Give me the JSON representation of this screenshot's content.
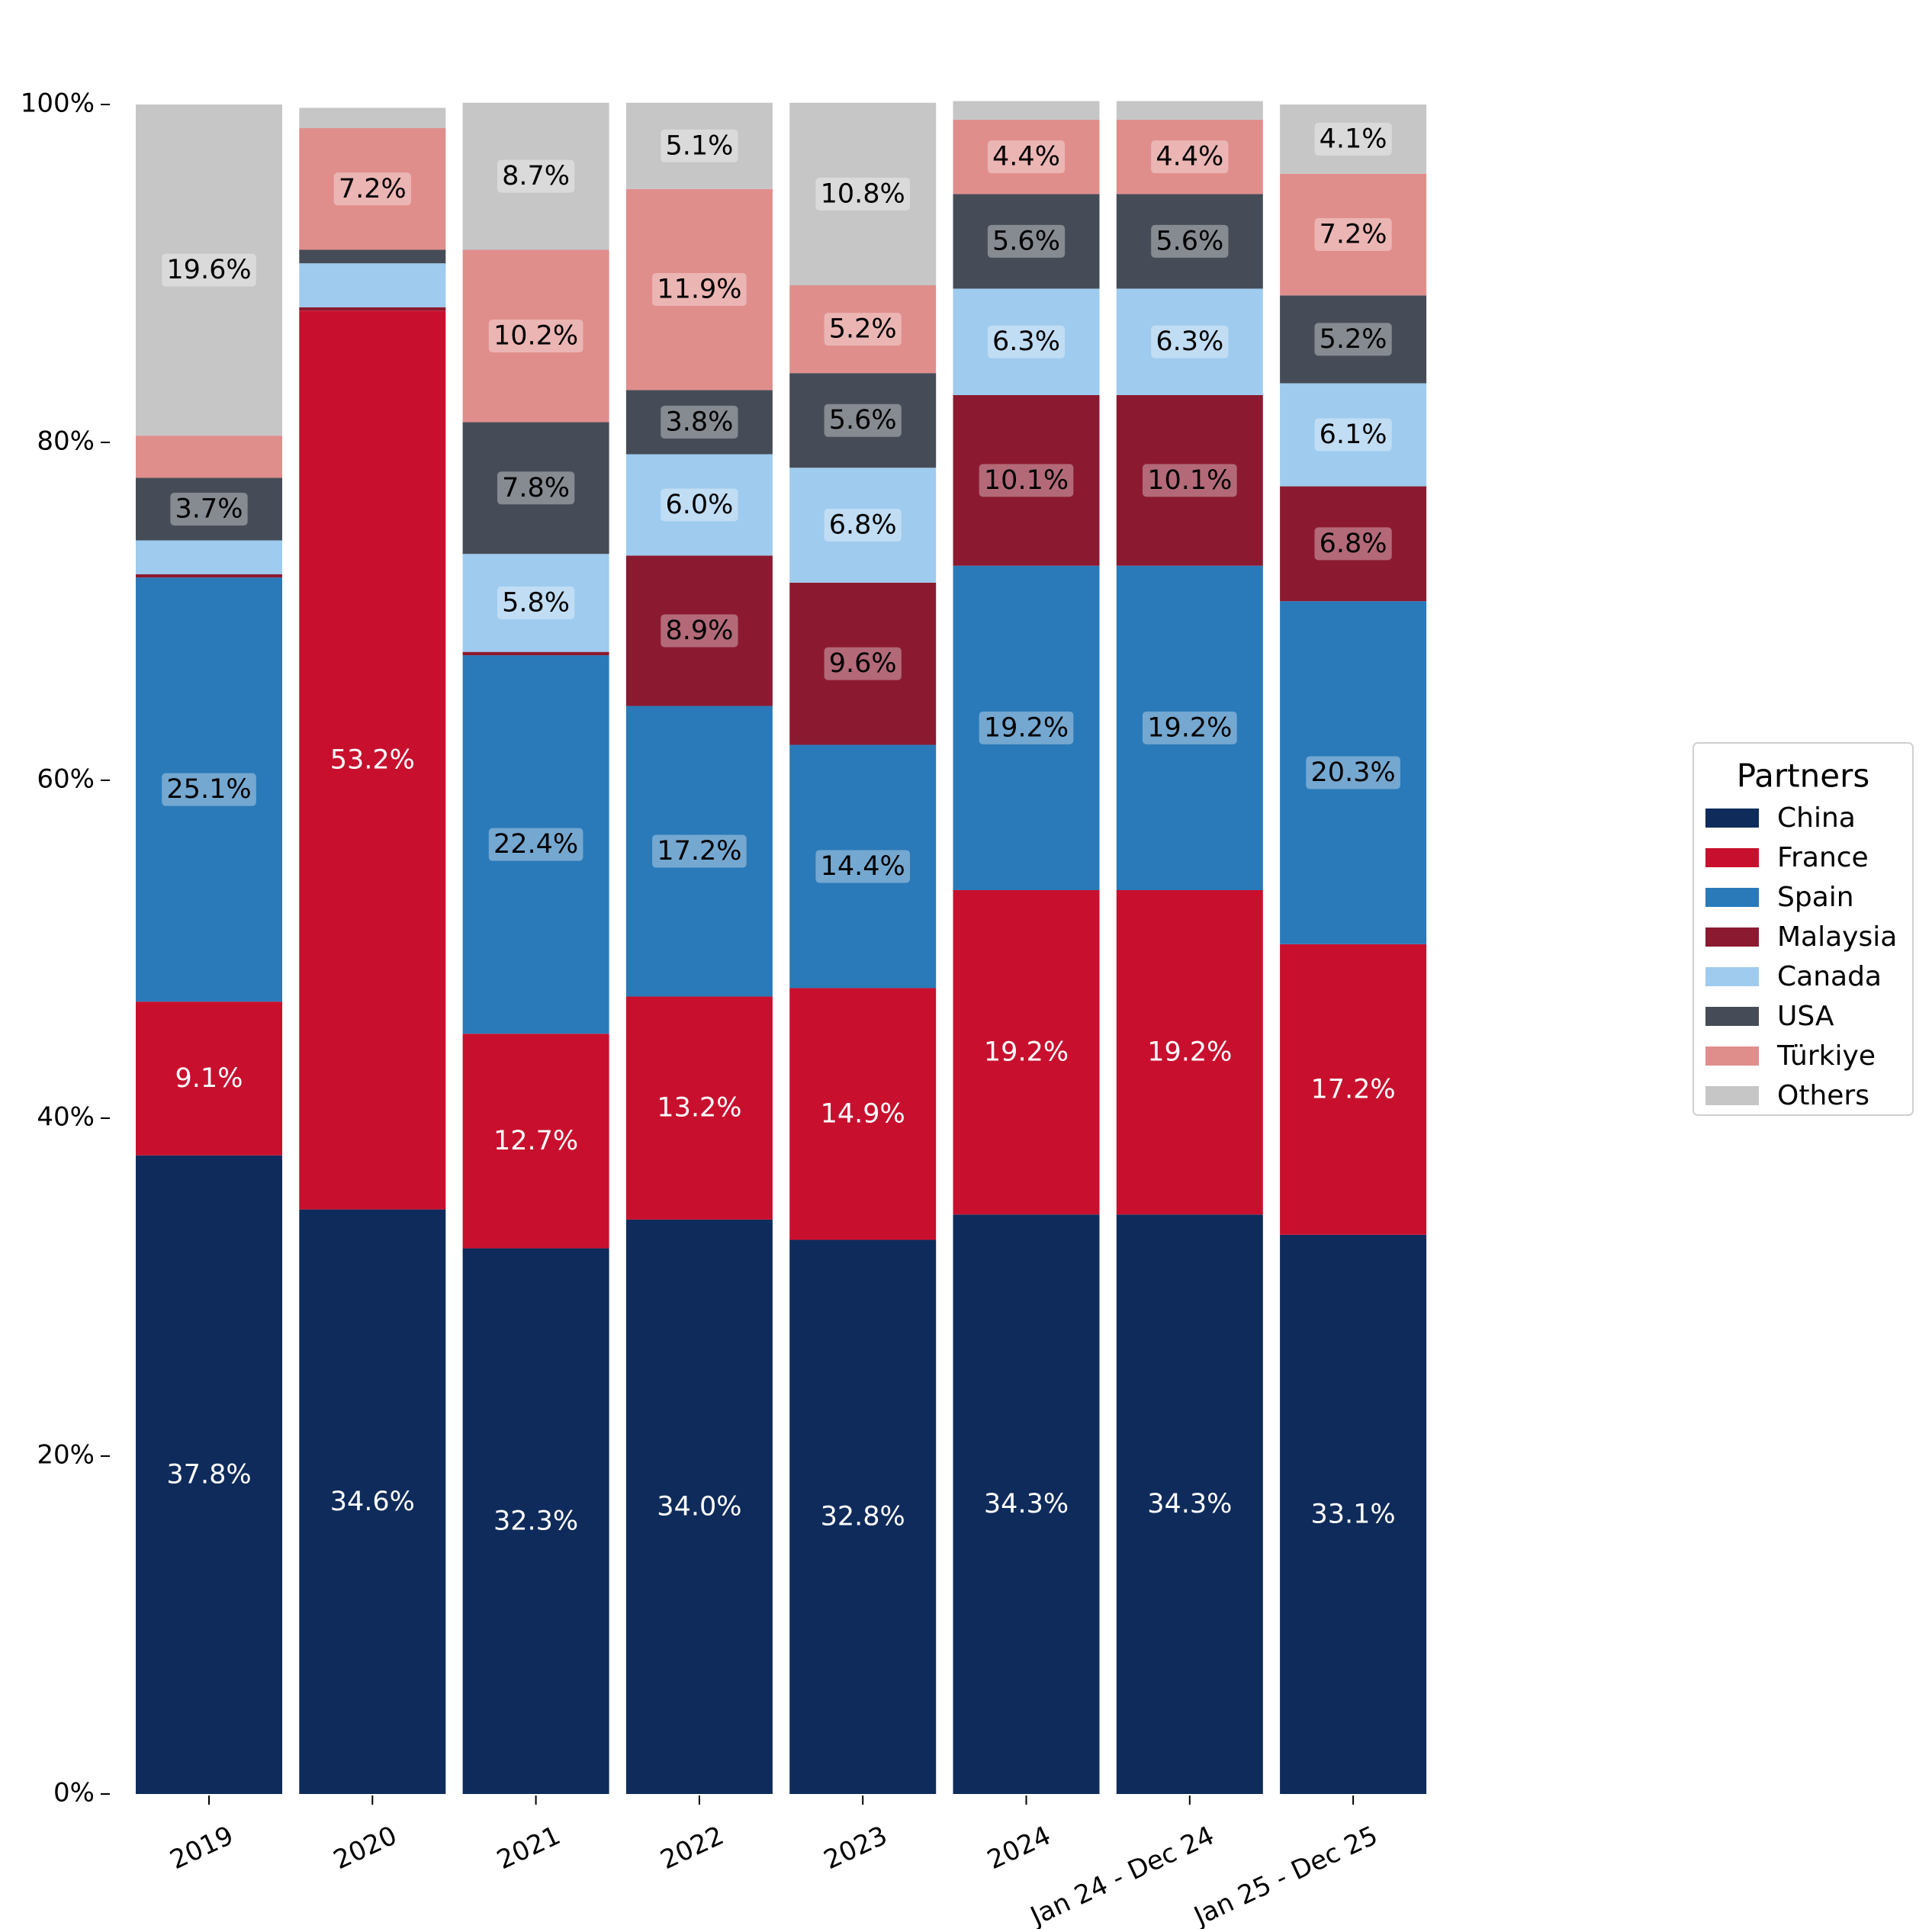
{
  "chart_data": {
    "type": "bar",
    "stacked": true,
    "normalized": true,
    "categories": [
      "2019",
      "2020",
      "2021",
      "2022",
      "2023",
      "2024",
      "Jan 24 - Dec 24",
      "Jan 25 - Dec 25"
    ],
    "series": [
      {
        "name": "China",
        "color": "#0f2b5b",
        "values": [
          37.8,
          34.6,
          32.3,
          34.0,
          32.8,
          34.3,
          34.3,
          33.1
        ],
        "labels": [
          "37.8%",
          "34.6%",
          "32.3%",
          "34.0%",
          "32.8%",
          "34.3%",
          "34.3%",
          "33.1%"
        ]
      },
      {
        "name": "France",
        "color": "#c8102e",
        "values": [
          9.1,
          53.2,
          12.7,
          13.2,
          14.9,
          19.2,
          19.2,
          17.2
        ],
        "labels": [
          "9.1%",
          "53.2%",
          "12.7%",
          "13.2%",
          "14.9%",
          "19.2%",
          "19.2%",
          "17.2%"
        ]
      },
      {
        "name": "Spain",
        "color": "#2a7ab9",
        "values": [
          25.1,
          0.0,
          22.4,
          17.2,
          14.4,
          19.2,
          19.2,
          20.3
        ],
        "labels": [
          "25.1%",
          "",
          "22.4%",
          "17.2%",
          "14.4%",
          "19.2%",
          "19.2%",
          "20.3%"
        ]
      },
      {
        "name": "Malaysia",
        "color": "#8b1a30",
        "values": [
          0.2,
          0.2,
          0.2,
          8.9,
          9.6,
          10.1,
          10.1,
          6.8
        ],
        "labels": [
          "",
          "",
          "",
          "8.9%",
          "9.6%",
          "10.1%",
          "10.1%",
          "6.8%"
        ]
      },
      {
        "name": "Canada",
        "color": "#9ecbee",
        "values": [
          2.0,
          2.6,
          5.8,
          6.0,
          6.8,
          6.3,
          6.3,
          6.1
        ],
        "labels": [
          "",
          "",
          "5.8%",
          "6.0%",
          "6.8%",
          "6.3%",
          "6.3%",
          "6.1%"
        ]
      },
      {
        "name": "USA",
        "color": "#464c57",
        "values": [
          3.7,
          0.8,
          7.8,
          3.8,
          5.6,
          5.6,
          5.6,
          5.2
        ],
        "labels": [
          "3.7%",
          "",
          "7.8%",
          "3.8%",
          "5.6%",
          "5.6%",
          "5.6%",
          "5.2%"
        ]
      },
      {
        "name": "Türkiye",
        "color": "#e08e8c",
        "values": [
          2.5,
          7.2,
          10.2,
          11.9,
          5.2,
          4.4,
          4.4,
          7.2
        ],
        "labels": [
          "",
          "7.2%",
          "10.2%",
          "11.9%",
          "5.2%",
          "4.4%",
          "4.4%",
          "7.2%"
        ]
      },
      {
        "name": "Others",
        "color": "#c6c6c6",
        "values": [
          19.6,
          1.2,
          8.7,
          5.1,
          10.8,
          1.1,
          1.1,
          4.1
        ],
        "labels": [
          "19.6%",
          "",
          "8.7%",
          "5.1%",
          "10.8%",
          "",
          "",
          "4.1%"
        ]
      }
    ],
    "label_text_colors": {
      "China": "#ffffff",
      "France": "#ffffff",
      "Spain": "#000000",
      "Malaysia": "#000000",
      "Canada": "#000000",
      "USA": "#000000",
      "Türkiye": "#000000",
      "Others": "#000000"
    },
    "y_ticks": [
      "0%",
      "20%",
      "40%",
      "60%",
      "80%",
      "100%"
    ],
    "y_tick_values": [
      0,
      20,
      40,
      60,
      80,
      100
    ],
    "ylim": [
      0,
      100
    ],
    "legend": {
      "title": "Partners",
      "placement": "right"
    },
    "grid": false
  }
}
